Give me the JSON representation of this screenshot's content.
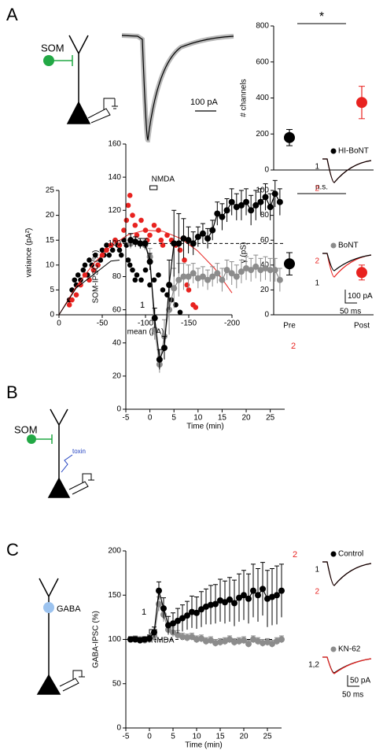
{
  "panel_labels": [
    "A",
    "B",
    "C"
  ],
  "diagrams": {
    "A": {
      "cell": "SOM",
      "scale": "100 pA"
    },
    "B": {
      "cell": "SOM",
      "toxin": "toxin"
    },
    "C": {
      "cell": "GABA"
    }
  },
  "chart_data": [
    {
      "type": "dot",
      "ylabel": "# channels",
      "values": [
        180,
        375
      ],
      "errors": [
        45,
        90
      ],
      "colors": [
        "#000000",
        "#e8221f"
      ],
      "ylim": [
        0,
        800
      ],
      "yticks": [
        0,
        200,
        400,
        600,
        800
      ],
      "annotation": "*"
    },
    {
      "type": "scatter",
      "xlabel": "mean (pA)",
      "ylabel": "variance (pA²)",
      "xlim": [
        0,
        -200
      ],
      "xticks": [
        0,
        -50,
        -100,
        -150,
        -200
      ],
      "ylim": [
        0,
        25
      ],
      "yticks": [
        0,
        5,
        10,
        15,
        20,
        25
      ],
      "series": [
        {
          "color": "#000000",
          "x": [
            -12,
            -15,
            -18,
            -20,
            -22,
            -25,
            -28,
            -30,
            -33,
            -35,
            -38,
            -40,
            -42,
            -45,
            -48,
            -50,
            -52,
            -55,
            -58,
            -60,
            -62,
            -65,
            -68,
            -70,
            -72,
            -75,
            -78,
            -80,
            -82,
            -85,
            -88,
            -90,
            -95,
            -100,
            -105,
            -110,
            -115,
            -120,
            -125,
            -130,
            -135,
            -140
          ],
          "values": [
            3,
            5,
            7,
            6,
            8,
            7,
            9,
            10,
            8,
            11,
            10,
            9,
            12,
            10,
            11,
            13,
            12,
            14,
            12,
            14,
            13,
            15,
            14,
            13,
            12,
            15,
            14,
            11,
            10,
            9,
            7,
            8,
            7,
            9,
            6,
            7,
            8,
            5,
            4,
            3,
            2,
            0.5
          ]
        },
        {
          "color": "#e8221f",
          "x": [
            -12,
            -15,
            -20,
            -25,
            -30,
            -35,
            -40,
            -45,
            -50,
            -55,
            -60,
            -65,
            -70,
            -75,
            -78,
            -80,
            -82,
            -85,
            -88,
            -90,
            -95,
            -100,
            -102,
            -105,
            -110,
            -115,
            -118,
            -120,
            -125,
            -130,
            -135,
            -140,
            -145,
            -148,
            -150,
            -155,
            -158
          ],
          "values": [
            2,
            3,
            4,
            6,
            8,
            7,
            9,
            10,
            12,
            13,
            14,
            15,
            14,
            17,
            19,
            22,
            24,
            20,
            18,
            16,
            19,
            17,
            15,
            16,
            18,
            17,
            15,
            14,
            16,
            15,
            14,
            13,
            11,
            6,
            5,
            2,
            1.5
          ]
        }
      ],
      "fits": [
        {
          "color": "#e8221f",
          "x": [
            0,
            -20,
            -40,
            -60,
            -80,
            -100,
            -120,
            -140,
            -160,
            -180,
            -200
          ],
          "values": [
            0,
            5.7,
            10.3,
            13.8,
            16.1,
            17.0,
            16.8,
            15.4,
            12.9,
            9.3,
            4.4
          ]
        },
        {
          "color": "#000000",
          "x": [
            0,
            -20,
            -40,
            -60,
            -70
          ],
          "values": [
            0,
            5.4,
            8.1,
            10.8,
            11.0
          ]
        }
      ]
    },
    {
      "type": "dot",
      "ylabel": "γ (pS)",
      "categories": [
        "Pre",
        "Post"
      ],
      "values": [
        41,
        34
      ],
      "errors": [
        9,
        6
      ],
      "colors": [
        "#000000",
        "#e8221f"
      ],
      "ylim": [
        0,
        100
      ],
      "yticks": [
        0,
        20,
        40,
        60,
        80,
        100
      ],
      "annotation": "n.s."
    },
    {
      "type": "line",
      "xlabel": "Time (min)",
      "ylabel": "SOM-IPSC (%)",
      "xlim": [
        -5,
        28
      ],
      "xticks": [
        -5,
        0,
        5,
        10,
        15,
        20,
        25
      ],
      "ylim": [
        0,
        160
      ],
      "yticks": [
        0,
        20,
        40,
        60,
        80,
        100,
        120,
        140,
        160
      ],
      "baseline": 100,
      "stimulus": "NMDA",
      "stimulus_span": [
        0,
        1.5
      ],
      "marks": [
        "1",
        "2"
      ],
      "x": [
        -4,
        -3,
        -2,
        -1,
        0,
        1,
        2,
        3,
        4,
        5,
        6,
        7,
        8,
        9,
        10,
        11,
        12,
        13,
        14,
        15,
        16,
        17,
        18,
        19,
        20,
        21,
        22,
        23,
        24,
        25,
        26,
        27
      ],
      "series": [
        {
          "name": "HI-BoNT",
          "color": "#000000",
          "values": [
            102,
            101,
            100,
            100,
            89,
            55,
            30,
            37,
            75,
            100,
            100,
            103,
            102,
            100,
            104,
            106,
            103,
            108,
            118,
            116,
            120,
            125,
            122,
            123,
            125,
            120,
            123,
            125,
            128,
            122,
            130,
            125
          ],
          "errors": [
            4,
            3,
            3,
            3,
            5,
            6,
            6,
            7,
            15,
            20,
            18,
            12,
            8,
            7,
            6,
            6,
            6,
            6,
            7,
            8,
            7,
            8,
            8,
            9,
            8,
            9,
            9,
            8,
            8,
            8,
            8,
            8
          ]
        },
        {
          "name": "BoNT",
          "color": "#8c8c8c",
          "values": [
            100,
            101,
            100,
            99,
            92,
            48,
            27,
            44,
            60,
            73,
            78,
            80,
            80,
            82,
            79,
            80,
            78,
            80,
            82,
            78,
            84,
            82,
            80,
            83,
            85,
            84,
            86,
            84,
            85,
            84,
            84,
            78
          ],
          "errors": [
            3,
            3,
            3,
            3,
            5,
            6,
            5,
            10,
            15,
            12,
            10,
            8,
            7,
            6,
            6,
            6,
            6,
            6,
            6,
            7,
            6,
            7,
            7,
            7,
            7,
            7,
            7,
            7,
            7,
            7,
            7,
            7
          ]
        }
      ],
      "insets": [
        {
          "labels": [
            "1",
            "2"
          ]
        },
        {
          "labels": [
            "2",
            "1"
          ]
        }
      ],
      "scale_y": "100 pA",
      "scale_x": "50 ms"
    },
    {
      "type": "line",
      "xlabel": "Time (min)",
      "ylabel": "GABA-IPSC (%)",
      "xlim": [
        -5,
        28
      ],
      "xticks": [
        -5,
        0,
        5,
        10,
        15,
        20,
        25
      ],
      "ylim": [
        0,
        200
      ],
      "yticks": [
        0,
        50,
        100,
        150,
        200
      ],
      "baseline": 100,
      "stimulus": "NMDA",
      "stimulus_span": [
        0,
        1.5
      ],
      "marks": [
        "1",
        "2"
      ],
      "x": [
        -4,
        -3,
        -2,
        -1,
        0,
        1,
        2,
        3,
        4,
        5,
        6,
        7,
        8,
        9,
        10,
        11,
        12,
        13,
        14,
        15,
        16,
        17,
        18,
        19,
        20,
        21,
        22,
        23,
        24,
        25,
        26,
        27,
        28
      ],
      "series": [
        {
          "name": "Control",
          "color": "#000000",
          "values": [
            100,
            100,
            99,
            100,
            101,
            108,
            155,
            135,
            116,
            118,
            121,
            124,
            127,
            131,
            130,
            134,
            137,
            139,
            140,
            144,
            142,
            145,
            141,
            147,
            150,
            146,
            155,
            150,
            157,
            146,
            148,
            150,
            155
          ],
          "errors": [
            3,
            3,
            3,
            3,
            4,
            6,
            10,
            12,
            10,
            12,
            14,
            15,
            16,
            18,
            18,
            20,
            20,
            22,
            22,
            24,
            24,
            25,
            26,
            27,
            28,
            28,
            30,
            30,
            30,
            32,
            32,
            33,
            30
          ]
        },
        {
          "name": "KN-62",
          "color": "#8c8c8c",
          "values": [
            100,
            101,
            100,
            99,
            100,
            104,
            140,
            128,
            111,
            108,
            105,
            103,
            102,
            103,
            100,
            101,
            98,
            99,
            96,
            97,
            98,
            100,
            97,
            98,
            99,
            95,
            100,
            98,
            96,
            97,
            95,
            98,
            100
          ],
          "errors": [
            3,
            3,
            3,
            3,
            4,
            6,
            8,
            8,
            6,
            5,
            5,
            4,
            4,
            4,
            4,
            4,
            4,
            4,
            4,
            4,
            4,
            4,
            4,
            4,
            4,
            4,
            4,
            4,
            4,
            4,
            4,
            4,
            4
          ]
        }
      ],
      "insets": [
        {
          "labels": [
            "1",
            "2"
          ]
        },
        {
          "labels": [
            "1,2"
          ]
        }
      ],
      "scale_y": "50 pA",
      "scale_x": "50 ms"
    }
  ]
}
